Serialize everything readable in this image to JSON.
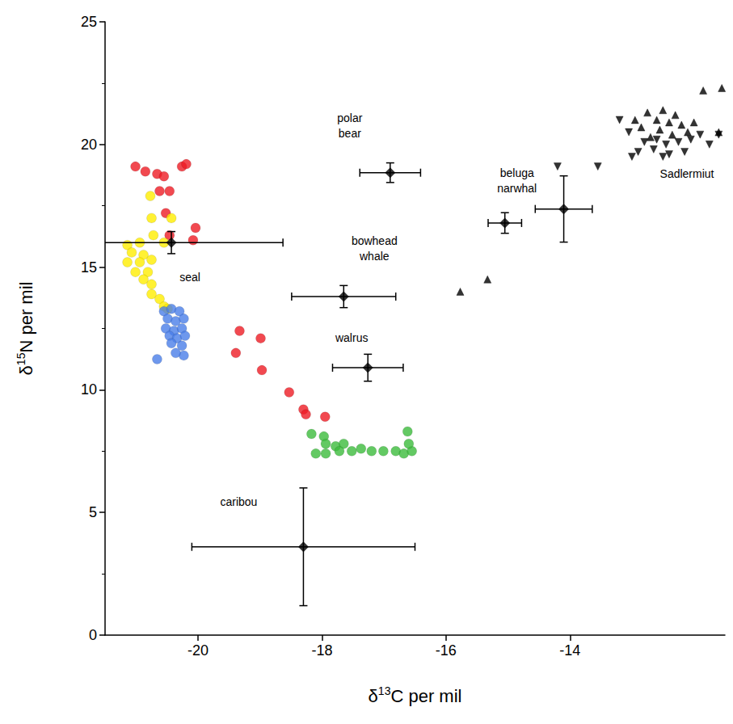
{
  "chart_data": {
    "type": "scatter",
    "xlabel": "δ13C per mil",
    "ylabel": "δ15N per mil",
    "xlim": [
      -21.5,
      -11.5
    ],
    "ylim": [
      0,
      25
    ],
    "xticks": [
      -20,
      -18,
      -16,
      -14
    ],
    "yticks": [
      0,
      5,
      10,
      15,
      20,
      25
    ],
    "grid": false,
    "series": [
      {
        "color": "#ed1c24",
        "marker": "circle",
        "values": [
          [
            -21.01,
            19.1
          ],
          [
            -20.85,
            18.9
          ],
          [
            -20.66,
            18.8
          ],
          [
            -20.55,
            18.7
          ],
          [
            -20.26,
            19.1
          ],
          [
            -20.19,
            19.2
          ],
          [
            -20.62,
            18.1
          ],
          [
            -20.46,
            18.1
          ],
          [
            -20.52,
            17.2
          ],
          [
            -20.04,
            16.6
          ],
          [
            -20.46,
            16.3
          ],
          [
            -20.08,
            16.1
          ],
          [
            -19.33,
            12.4
          ],
          [
            -18.99,
            12.1
          ],
          [
            -19.39,
            11.5
          ],
          [
            -18.97,
            10.8
          ],
          [
            -18.53,
            9.9
          ],
          [
            -18.3,
            9.2
          ],
          [
            -18.26,
            9.0
          ],
          [
            -17.95,
            8.9
          ]
        ]
      },
      {
        "color": "#ffee00",
        "marker": "circle",
        "values": [
          [
            -20.77,
            17.9
          ],
          [
            -20.43,
            17.0
          ],
          [
            -20.75,
            17.0
          ],
          [
            -20.72,
            16.3
          ],
          [
            -21.14,
            15.9
          ],
          [
            -20.94,
            16.0
          ],
          [
            -20.55,
            16.0
          ],
          [
            -21.07,
            15.6
          ],
          [
            -20.88,
            15.5
          ],
          [
            -21.14,
            15.2
          ],
          [
            -20.94,
            15.2
          ],
          [
            -20.75,
            15.3
          ],
          [
            -21.01,
            14.8
          ],
          [
            -20.81,
            14.8
          ],
          [
            -20.88,
            14.5
          ],
          [
            -20.75,
            14.3
          ],
          [
            -20.75,
            13.9
          ],
          [
            -20.62,
            13.7
          ],
          [
            -20.55,
            13.4
          ],
          [
            -20.49,
            13.3
          ]
        ]
      },
      {
        "color": "#4a7ee8",
        "marker": "circle",
        "values": [
          [
            -20.66,
            11.25
          ],
          [
            -20.23,
            11.4
          ],
          [
            -20.55,
            13.2
          ],
          [
            -20.43,
            13.3
          ],
          [
            -20.3,
            13.2
          ],
          [
            -20.49,
            12.9
          ],
          [
            -20.36,
            12.8
          ],
          [
            -20.23,
            12.9
          ],
          [
            -20.52,
            12.5
          ],
          [
            -20.39,
            12.4
          ],
          [
            -20.26,
            12.5
          ],
          [
            -20.46,
            12.2
          ],
          [
            -20.34,
            12.1
          ],
          [
            -20.21,
            12.2
          ],
          [
            -20.43,
            11.9
          ],
          [
            -20.26,
            11.8
          ],
          [
            -20.36,
            11.5
          ]
        ]
      },
      {
        "color": "#3cbc3c",
        "marker": "circle",
        "values": [
          [
            -18.17,
            8.2
          ],
          [
            -17.97,
            8.1
          ],
          [
            -17.94,
            7.8
          ],
          [
            -17.78,
            7.7
          ],
          [
            -17.65,
            7.8
          ],
          [
            -17.52,
            7.5
          ],
          [
            -17.37,
            7.6
          ],
          [
            -17.2,
            7.5
          ],
          [
            -17.01,
            7.5
          ],
          [
            -16.81,
            7.5
          ],
          [
            -16.68,
            7.4
          ],
          [
            -16.55,
            7.5
          ],
          [
            -17.94,
            7.4
          ],
          [
            -18.1,
            7.4
          ],
          [
            -17.72,
            7.5
          ],
          [
            -16.62,
            8.3
          ],
          [
            -16.6,
            7.8
          ]
        ]
      },
      {
        "color": "#000000",
        "marker": "triangle",
        "values": [
          [
            -12.95,
            21.0
          ],
          [
            -12.75,
            21.3
          ],
          [
            -12.5,
            21.4
          ],
          [
            -12.3,
            21.2
          ],
          [
            -12.6,
            21.0
          ],
          [
            -12.4,
            20.9
          ],
          [
            -12.2,
            20.8
          ],
          [
            -12.85,
            20.7
          ],
          [
            -12.55,
            20.6
          ],
          [
            -12.1,
            20.5
          ],
          [
            -12.35,
            20.4
          ],
          [
            -12.7,
            20.3
          ],
          [
            -12.0,
            20.9
          ],
          [
            -11.85,
            22.2
          ],
          [
            -11.55,
            22.3
          ],
          [
            -11.6,
            20.5
          ],
          [
            -15.77,
            14.0
          ],
          [
            -15.33,
            14.5
          ]
        ]
      },
      {
        "color": "#000000",
        "marker": "triangle-down",
        "values": [
          [
            -13.05,
            20.5
          ],
          [
            -12.8,
            20.1
          ],
          [
            -12.6,
            20.2
          ],
          [
            -12.45,
            20.0
          ],
          [
            -12.25,
            20.1
          ],
          [
            -12.05,
            20.2
          ],
          [
            -11.9,
            20.4
          ],
          [
            -12.9,
            19.7
          ],
          [
            -12.65,
            19.8
          ],
          [
            -12.4,
            19.6
          ],
          [
            -12.15,
            19.7
          ],
          [
            -11.75,
            20.0
          ],
          [
            -11.6,
            20.4
          ],
          [
            -14.2,
            19.1
          ],
          [
            -13.55,
            19.1
          ],
          [
            -13.0,
            19.5
          ],
          [
            -12.5,
            19.5
          ],
          [
            -13.2,
            21.0
          ]
        ]
      }
    ],
    "error_bars": [
      {
        "label": "polar bear",
        "points": [
          {
            "x": -16.9,
            "y": 18.85,
            "x_error": 0.49,
            "y_error": 0.4
          }
        ]
      },
      {
        "label": "seal",
        "points": [
          {
            "x": -20.43,
            "y": 16.0,
            "x_error": 1.8,
            "y_error": 0.45
          }
        ]
      },
      {
        "label": "bowhead whale",
        "points": [
          {
            "x": -17.65,
            "y": 13.8,
            "x_error": 0.84,
            "y_error": 0.45
          }
        ]
      },
      {
        "label": "walrus",
        "points": [
          {
            "x": -17.26,
            "y": 10.9,
            "x_error": 0.57,
            "y_error": 0.55
          }
        ]
      },
      {
        "label": "beluga narwhal",
        "points": [
          {
            "x": -15.05,
            "y": 16.8,
            "x_error": 0.27,
            "y_error": 0.42
          },
          {
            "x": -14.1,
            "y": 17.37,
            "x_error": 0.46,
            "y_error": 1.35
          }
        ]
      },
      {
        "label": "caribou",
        "points": [
          {
            "x": -18.3,
            "y": 3.6,
            "x_error": 1.8,
            "y_error": 2.4
          }
        ]
      }
    ],
    "annotations": [
      "Sadlermiut"
    ]
  }
}
